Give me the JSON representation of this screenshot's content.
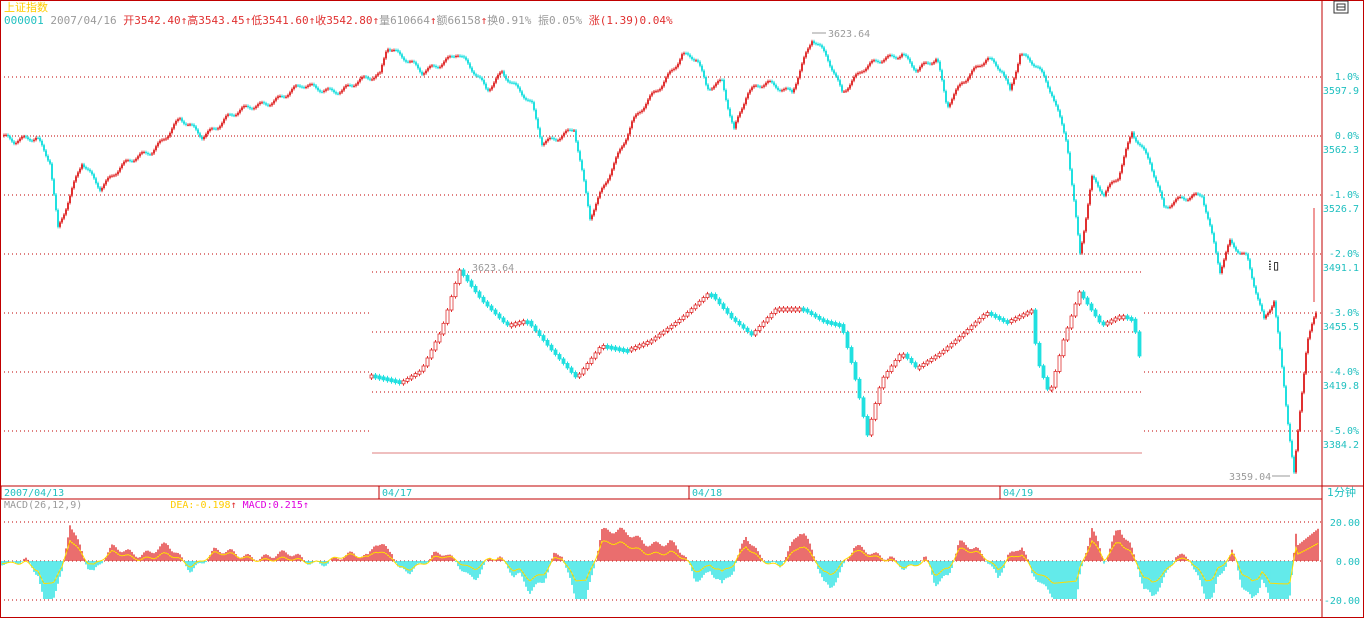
{
  "header": {
    "index_name": "上证指数",
    "code": "000001",
    "date": "2007/04/16",
    "open_label": "开",
    "open": "3542.40",
    "high_label": "高",
    "high": "3543.45",
    "low_label": "低",
    "low": "3541.60",
    "close_label": "收",
    "close": "3542.80",
    "volume_label": "量",
    "volume": "610664",
    "amount_label": "额",
    "amount": "66158",
    "turnover_label": "换",
    "turnover": "0.91%",
    "amplitude_label": "振",
    "amplitude": "0.05%",
    "change_label": "涨",
    "change": "(1.39)0.04%",
    "arrow": "↑"
  },
  "corner_icon": "window-restore-icon",
  "period_label": "1分钟",
  "macd_header": {
    "name": "MACD(26,12,9)",
    "dea_label": "DEA:",
    "dea": "-0.198",
    "macd_label": "MACD:",
    "macd": "0.215",
    "arrow": "↑"
  },
  "colors": {
    "up": "#e03030",
    "down": "#20e0e0",
    "line": "#ffcc00",
    "frame": "#c00000",
    "axis_text": "#20c0c0"
  },
  "chart_data": {
    "type": "candlestick",
    "interval": "1-minute",
    "price_axis": {
      "ticks": [
        "3597.9",
        "3562.3",
        "3526.7",
        "3491.1",
        "3455.5",
        "3419.8",
        "3384.2"
      ],
      "pct_ticks": [
        "1.0%",
        "0.0%",
        "-1.0%",
        "-2.0%",
        "-3.0%",
        "-4.0%",
        "-5.0%"
      ],
      "range": [
        3359.04,
        3623.64
      ]
    },
    "time_axis": [
      "2007/04/13",
      "04/17",
      "04/18",
      "04/19"
    ],
    "annotations": {
      "max": "3623.64",
      "min": "3359.04",
      "inset_max": "3623.64"
    },
    "series_keypoints": [
      {
        "t": 0,
        "v": 3562.3
      },
      {
        "t": 12,
        "v": 3558
      },
      {
        "t": 35,
        "v": 3562
      },
      {
        "t": 48,
        "v": 3548
      },
      {
        "t": 56,
        "v": 3506
      },
      {
        "t": 68,
        "v": 3525
      },
      {
        "t": 80,
        "v": 3546
      },
      {
        "t": 98,
        "v": 3532
      },
      {
        "t": 118,
        "v": 3543
      },
      {
        "t": 150,
        "v": 3554
      },
      {
        "t": 178,
        "v": 3572
      },
      {
        "t": 200,
        "v": 3562
      },
      {
        "t": 225,
        "v": 3574
      },
      {
        "t": 262,
        "v": 3582
      },
      {
        "t": 300,
        "v": 3592
      },
      {
        "t": 340,
        "v": 3590
      },
      {
        "t": 378,
        "v": 3600
      },
      {
        "t": 385,
        "v": 3618
      },
      {
        "t": 420,
        "v": 3600
      },
      {
        "t": 455,
        "v": 3613
      },
      {
        "t": 485,
        "v": 3590
      },
      {
        "t": 500,
        "v": 3602
      },
      {
        "t": 530,
        "v": 3580
      },
      {
        "t": 540,
        "v": 3558
      },
      {
        "t": 572,
        "v": 3567
      },
      {
        "t": 588,
        "v": 3512
      },
      {
        "t": 610,
        "v": 3544
      },
      {
        "t": 630,
        "v": 3570
      },
      {
        "t": 660,
        "v": 3594
      },
      {
        "t": 680,
        "v": 3612
      },
      {
        "t": 695,
        "v": 3608
      },
      {
        "t": 705,
        "v": 3590
      },
      {
        "t": 720,
        "v": 3596
      },
      {
        "t": 732,
        "v": 3567
      },
      {
        "t": 745,
        "v": 3588
      },
      {
        "t": 765,
        "v": 3594
      },
      {
        "t": 790,
        "v": 3590
      },
      {
        "t": 810,
        "v": 3620
      },
      {
        "t": 825,
        "v": 3610
      },
      {
        "t": 840,
        "v": 3590
      },
      {
        "t": 860,
        "v": 3602
      },
      {
        "t": 880,
        "v": 3608
      },
      {
        "t": 900,
        "v": 3613
      },
      {
        "t": 915,
        "v": 3602
      },
      {
        "t": 935,
        "v": 3608
      },
      {
        "t": 945,
        "v": 3581
      },
      {
        "t": 960,
        "v": 3596
      },
      {
        "t": 985,
        "v": 3608
      },
      {
        "t": 1000,
        "v": 3602
      },
      {
        "t": 1008,
        "v": 3590
      },
      {
        "t": 1018,
        "v": 3613
      },
      {
        "t": 1035,
        "v": 3604
      },
      {
        "t": 1050,
        "v": 3587
      },
      {
        "t": 1065,
        "v": 3560
      },
      {
        "t": 1078,
        "v": 3492
      },
      {
        "t": 1090,
        "v": 3536
      },
      {
        "t": 1102,
        "v": 3526
      },
      {
        "t": 1116,
        "v": 3538
      },
      {
        "t": 1130,
        "v": 3566
      },
      {
        "t": 1148,
        "v": 3546
      },
      {
        "t": 1162,
        "v": 3518
      },
      {
        "t": 1180,
        "v": 3526
      },
      {
        "t": 1200,
        "v": 3527
      },
      {
        "t": 1218,
        "v": 3480
      },
      {
        "t": 1228,
        "v": 3498
      },
      {
        "t": 1245,
        "v": 3490
      },
      {
        "t": 1262,
        "v": 3450
      },
      {
        "t": 1272,
        "v": 3462
      },
      {
        "t": 1292,
        "v": 3359.04
      },
      {
        "t": 1305,
        "v": 3440
      },
      {
        "t": 1315,
        "v": 3456
      }
    ]
  }
}
